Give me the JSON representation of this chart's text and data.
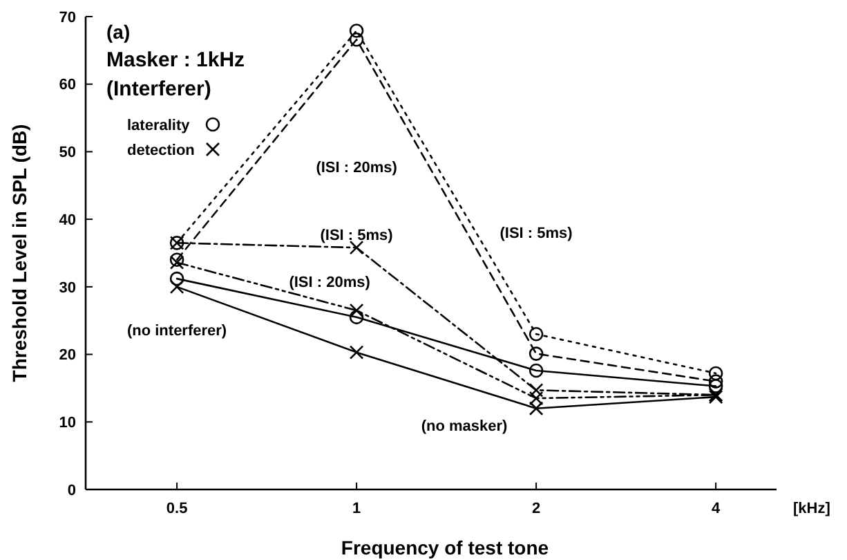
{
  "chart_data": {
    "type": "line",
    "title": "(a)",
    "subtitle": "Masker : 1kHz\n(Interferer)",
    "xlabel": "Frequency of test tone",
    "ylabel": "Threshold Level in SPL (dB)",
    "categories": [
      "0.5",
      "1",
      "2",
      "4"
    ],
    "ylim": [
      0,
      70
    ],
    "yticks": [
      0,
      10,
      20,
      30,
      40,
      50,
      60,
      70
    ],
    "grid": false,
    "legend": "top left",
    "series": [
      {
        "name": "laterality",
        "color": "#000000",
        "values": [
          36.5,
          67.9,
          23,
          17.2
        ],
        "marker": "circle",
        "line_style": "dotted"
      },
      {
        "color": "#000000",
        "values": [
          34,
          66.6,
          20.1,
          16
        ],
        "marker": "circle",
        "line_style": "dashed"
      },
      {
        "color": "#000000",
        "values": [
          31.2,
          25.5,
          17.6,
          15.3
        ],
        "marker": "circle",
        "line_style": "solid"
      },
      {
        "name": "detection",
        "color": "#000000",
        "values": [
          36.5,
          35.8,
          14.7,
          14
        ],
        "marker": "cross",
        "line_style": "dashdot"
      },
      {
        "color": "#000000",
        "values": [
          33.6,
          26.5,
          13.5,
          14
        ],
        "marker": "cross",
        "line_style": "dashdotdot"
      },
      {
        "color": "#000000",
        "values": [
          30,
          20.3,
          12,
          13.7
        ],
        "marker": "cross",
        "line_style": "solid"
      }
    ],
    "annotations": [
      "[kHz]",
      "(ISI : 20ms)",
      "(ISI : 5ms)",
      "(ISI : 5ms)",
      "(ISI : 20ms)",
      "(no interferer)",
      "(no masker)"
    ]
  }
}
